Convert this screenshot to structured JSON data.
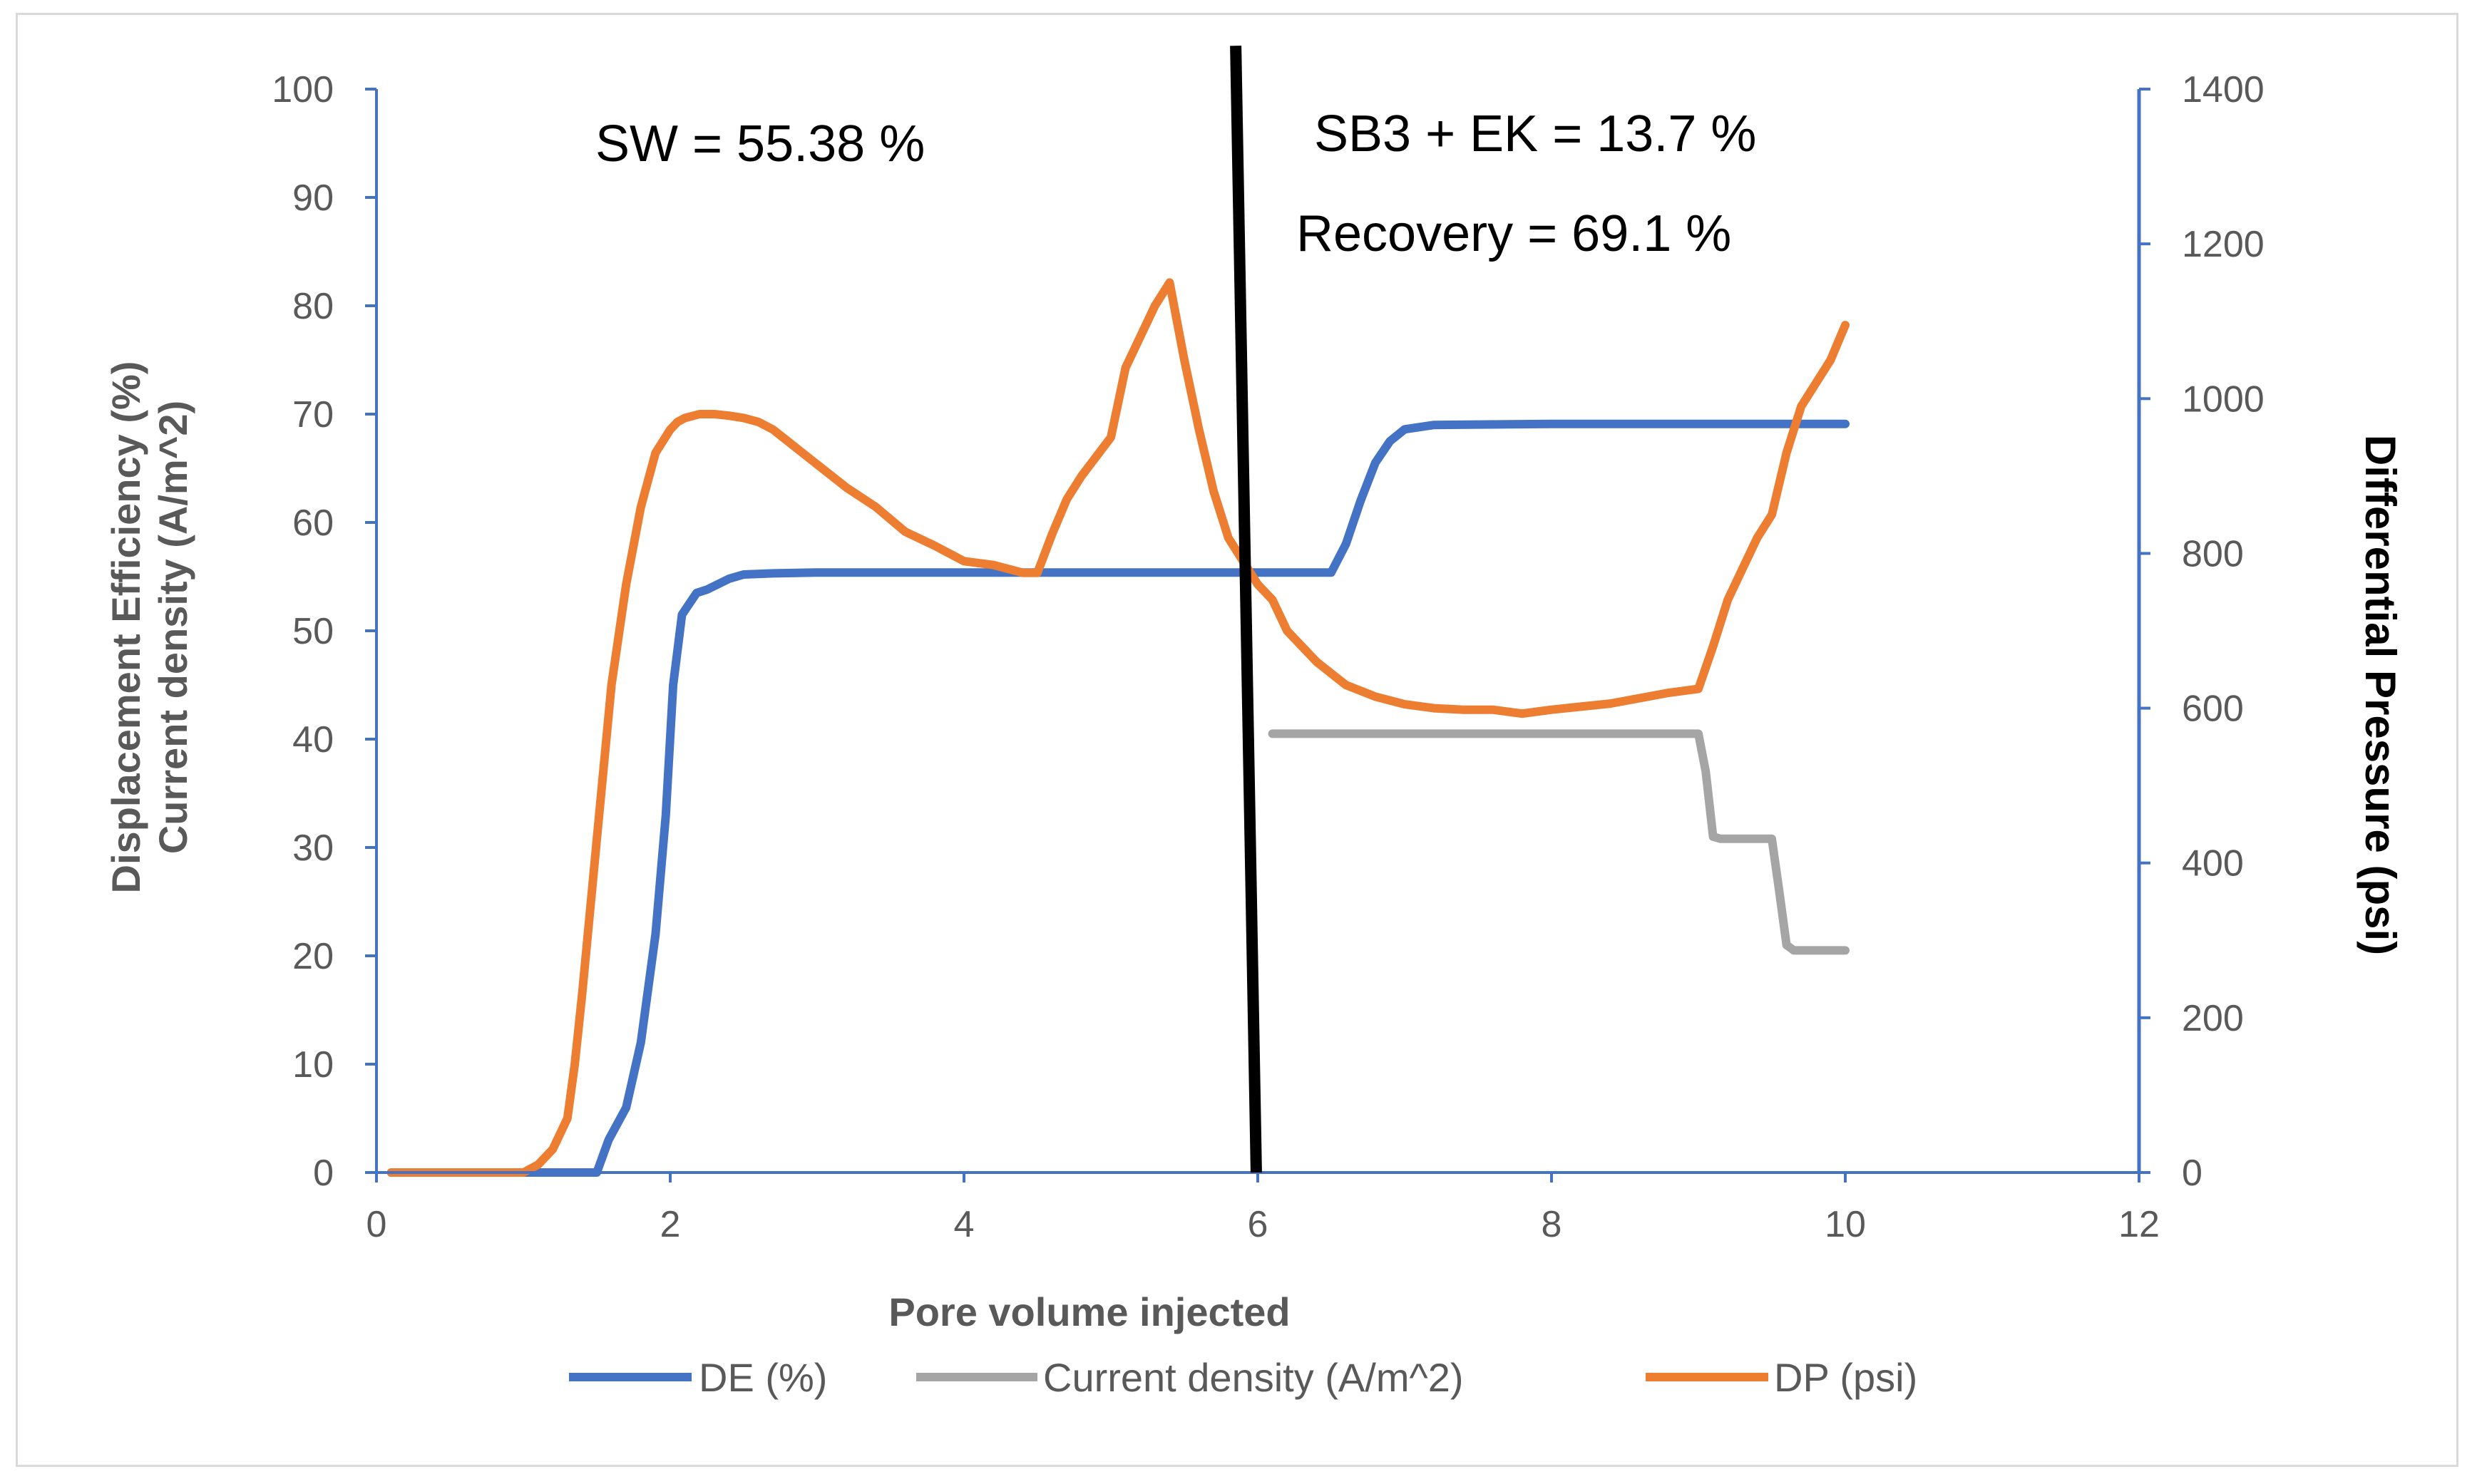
{
  "chart_data": {
    "type": "line",
    "xlabel": "Pore volume injected",
    "ylabel_left": [
      "Displacement Efficiency (%)",
      "Current density (A/m^2)"
    ],
    "ylabel_right": "Differential Pressure (psi)",
    "xlim": [
      0,
      12
    ],
    "ylim_left": [
      0,
      100
    ],
    "ylim_right": [
      0,
      1400
    ],
    "xticks": [
      0,
      2,
      4,
      6,
      8,
      10,
      12
    ],
    "yticks_left": [
      0,
      10,
      20,
      30,
      40,
      50,
      60,
      70,
      80,
      90,
      100
    ],
    "yticks_right": [
      0,
      200,
      400,
      600,
      800,
      1000,
      1200,
      1400
    ],
    "grid": false,
    "legend_position": "bottom",
    "colors": {
      "de": "#4472c4",
      "current": "#a5a5a5",
      "dp": "#ed7d31",
      "axis_right": "#4472c4",
      "divider": "#000000"
    },
    "annotations": {
      "sw": "SW = 55.38 %",
      "sb3": "SB3 + EK = 13.7 %",
      "recovery": "Recovery = 69.1 %"
    },
    "divider_line": {
      "x_start": 5.85,
      "y_start": 104,
      "x_end": 5.99,
      "y_end": 0
    },
    "series": [
      {
        "name": "DE (%)",
        "axis": "left",
        "x": [
          0.1,
          1.2,
          1.5,
          1.58,
          1.7,
          1.8,
          1.9,
          1.97,
          2.02,
          2.08,
          2.18,
          2.25,
          2.4,
          2.5,
          2.7,
          3.0,
          4.0,
          5.0,
          6.0,
          6.3,
          6.5,
          6.6,
          6.7,
          6.8,
          6.9,
          7.0,
          7.2,
          8.0,
          9.0,
          10.0
        ],
        "values": [
          0,
          0,
          0,
          3,
          6,
          12,
          22,
          33,
          45,
          51.5,
          53.5,
          53.8,
          54.8,
          55.2,
          55.3,
          55.38,
          55.38,
          55.38,
          55.38,
          55.38,
          55.38,
          58,
          62,
          65.5,
          67.5,
          68.6,
          69.0,
          69.1,
          69.1,
          69.1
        ]
      },
      {
        "name": "Current density (A/m^2)",
        "axis": "left",
        "x": [
          6.1,
          7.0,
          8.0,
          9.0,
          9.05,
          9.1,
          9.15,
          9.5,
          9.55,
          9.6,
          9.65,
          10.0
        ],
        "values": [
          40.5,
          40.5,
          40.5,
          40.5,
          37,
          31,
          30.8,
          30.8,
          26,
          21,
          20.5,
          20.5
        ]
      },
      {
        "name": "DP (psi)",
        "axis": "right",
        "x": [
          0.1,
          1.0,
          1.1,
          1.2,
          1.3,
          1.35,
          1.4,
          1.45,
          1.5,
          1.6,
          1.7,
          1.8,
          1.9,
          2.0,
          2.05,
          2.1,
          2.2,
          2.3,
          2.4,
          2.5,
          2.6,
          2.7,
          2.8,
          2.9,
          3.0,
          3.2,
          3.4,
          3.6,
          3.8,
          4.0,
          4.2,
          4.4,
          4.5,
          4.6,
          4.7,
          4.8,
          5.0,
          5.1,
          5.2,
          5.3,
          5.4,
          5.5,
          5.6,
          5.7,
          5.8,
          5.9,
          6.0,
          6.1,
          6.2,
          6.4,
          6.6,
          6.8,
          7.0,
          7.2,
          7.4,
          7.6,
          7.8,
          8.0,
          8.2,
          8.4,
          8.6,
          8.8,
          9.0,
          9.1,
          9.2,
          9.3,
          9.4,
          9.5,
          9.6,
          9.7,
          9.8,
          9.9,
          10.0
        ],
        "values": [
          0,
          0,
          10,
          30,
          70,
          140,
          230,
          330,
          430,
          630,
          760,
          860,
          930,
          960,
          970,
          975,
          980,
          980,
          978,
          975,
          970,
          960,
          945,
          930,
          915,
          885,
          860,
          828,
          810,
          790,
          785,
          775,
          775,
          825,
          870,
          900,
          950,
          1040,
          1080,
          1120,
          1150,
          1050,
          960,
          880,
          820,
          790,
          760,
          740,
          700,
          660,
          630,
          615,
          605,
          600,
          598,
          598,
          593,
          598,
          602,
          606,
          613,
          620,
          625,
          680,
          740,
          780,
          820,
          850,
          930,
          990,
          1020,
          1050,
          1095
        ]
      }
    ],
    "legend": [
      "DE (%)",
      "Current density (A/m^2)",
      "DP (psi)"
    ]
  }
}
